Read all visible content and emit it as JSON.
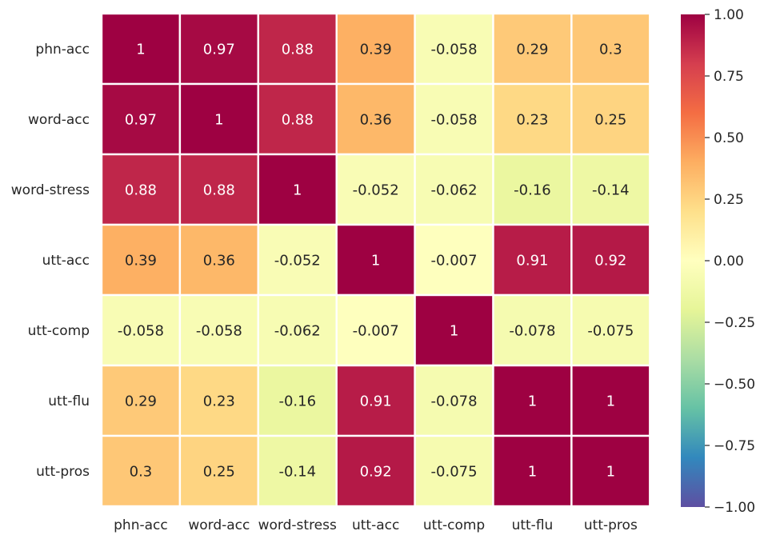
{
  "chart_data": {
    "type": "heatmap",
    "title": "",
    "xlabel": "",
    "ylabel": "",
    "row_labels": [
      "phn-acc",
      "word-acc",
      "word-stress",
      "utt-acc",
      "utt-comp",
      "utt-flu",
      "utt-pros"
    ],
    "col_labels": [
      "phn-acc",
      "word-acc",
      "word-stress",
      "utt-acc",
      "utt-comp",
      "utt-flu",
      "utt-pros"
    ],
    "values": [
      [
        1,
        0.97,
        0.88,
        0.39,
        -0.058,
        0.29,
        0.3
      ],
      [
        0.97,
        1,
        0.88,
        0.36,
        -0.058,
        0.23,
        0.25
      ],
      [
        0.88,
        0.88,
        1,
        -0.052,
        -0.062,
        -0.16,
        -0.14
      ],
      [
        0.39,
        0.36,
        -0.052,
        1,
        -0.007,
        0.91,
        0.92
      ],
      [
        -0.058,
        -0.058,
        -0.062,
        -0.007,
        1,
        -0.078,
        -0.075
      ],
      [
        0.29,
        0.23,
        -0.16,
        0.91,
        -0.078,
        1,
        1
      ],
      [
        0.3,
        0.25,
        -0.14,
        0.92,
        -0.075,
        1,
        1
      ]
    ],
    "value_labels": [
      [
        "1",
        "0.97",
        "0.88",
        "0.39",
        "-0.058",
        "0.29",
        "0.3"
      ],
      [
        "0.97",
        "1",
        "0.88",
        "0.36",
        "-0.058",
        "0.23",
        "0.25"
      ],
      [
        "0.88",
        "0.88",
        "1",
        "-0.052",
        "-0.062",
        "-0.16",
        "-0.14"
      ],
      [
        "0.39",
        "0.36",
        "-0.052",
        "1",
        "-0.007",
        "0.91",
        "0.92"
      ],
      [
        "-0.058",
        "-0.058",
        "-0.062",
        "-0.007",
        "1",
        "-0.078",
        "-0.075"
      ],
      [
        "0.29",
        "0.23",
        "-0.16",
        "0.91",
        "-0.078",
        "1",
        "1"
      ],
      [
        "0.3",
        "0.25",
        "-0.14",
        "0.92",
        "-0.075",
        "1",
        "1"
      ]
    ],
    "colormap": "Spectral_r",
    "color_range": [
      -1,
      1
    ],
    "colorbar": {
      "ticks": [
        1,
        0.75,
        0.5,
        0.25,
        0,
        -0.25,
        -0.5,
        -0.75,
        -1
      ],
      "tick_labels": [
        "1.00",
        "0.75",
        "0.50",
        "0.25",
        "0.00",
        "−0.25",
        "−0.50",
        "−0.75",
        "−1.00"
      ]
    },
    "grid": false,
    "cell_separator_color": "#ffffff",
    "text_color_dark": "#262626",
    "text_color_light": "#ffffff",
    "tick_label_color": "#262626"
  }
}
